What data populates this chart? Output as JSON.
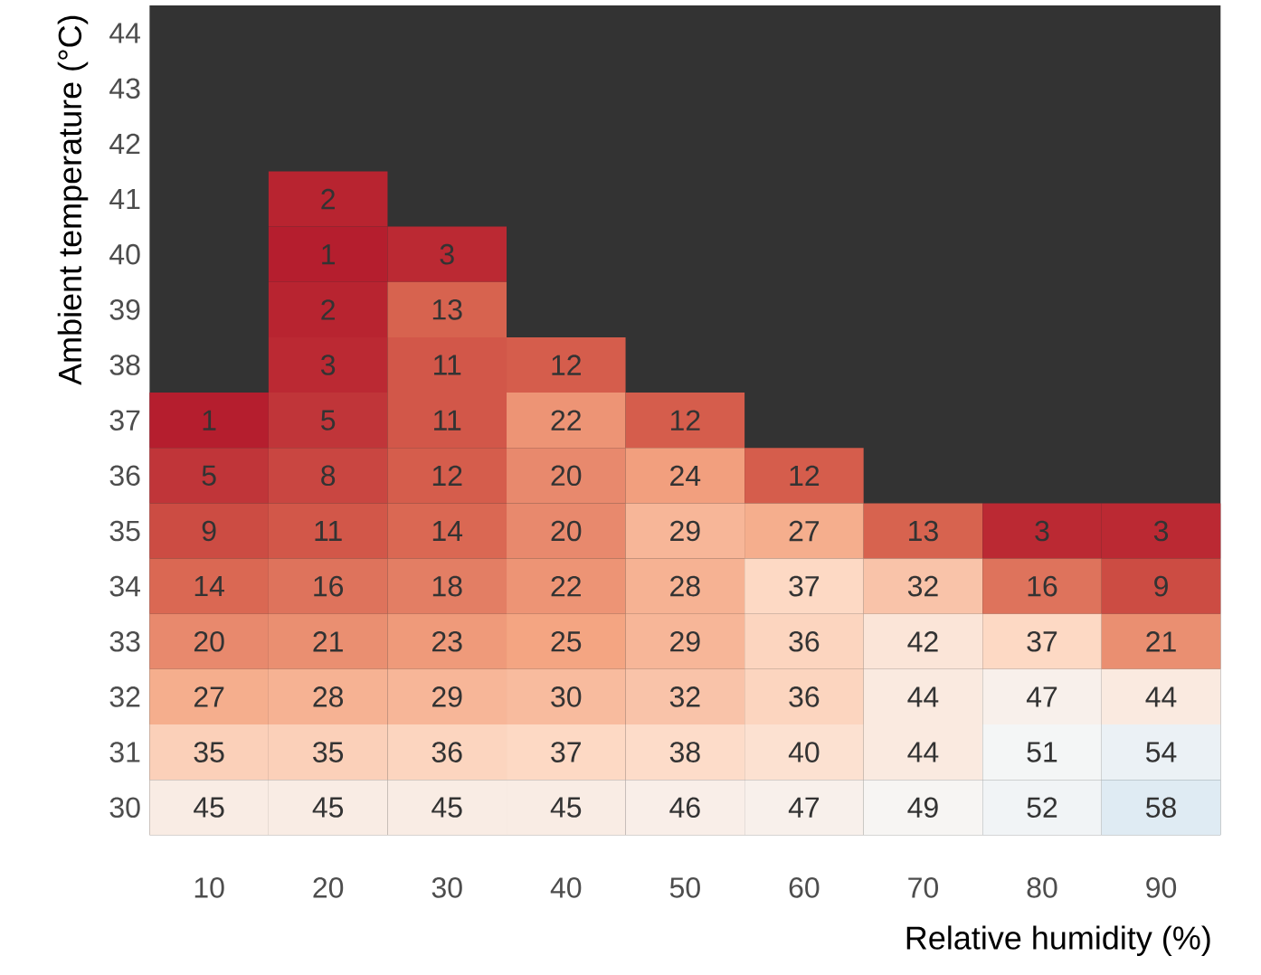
{
  "chart_data": {
    "type": "heatmap",
    "xlabel": "Relative humidity (%)",
    "ylabel": "Ambient temperature (°C)",
    "categories": [
      "10",
      "20",
      "30",
      "40",
      "50",
      "60",
      "70",
      "80",
      "90"
    ],
    "y_categories": [
      "44",
      "43",
      "42",
      "41",
      "40",
      "39",
      "38",
      "37",
      "36",
      "35",
      "34",
      "33",
      "32",
      "31",
      "30"
    ],
    "cells": [
      [
        null,
        null,
        null,
        null,
        null,
        null,
        null,
        null,
        null
      ],
      [
        null,
        null,
        null,
        null,
        null,
        null,
        null,
        null,
        null
      ],
      [
        null,
        null,
        null,
        null,
        null,
        null,
        null,
        null,
        null
      ],
      [
        null,
        2,
        null,
        null,
        null,
        null,
        null,
        null,
        null
      ],
      [
        null,
        1,
        3,
        null,
        null,
        null,
        null,
        null,
        null
      ],
      [
        null,
        2,
        13,
        null,
        null,
        null,
        null,
        null,
        null
      ],
      [
        null,
        3,
        11,
        12,
        null,
        null,
        null,
        null,
        null
      ],
      [
        1,
        5,
        11,
        22,
        12,
        null,
        null,
        null,
        null
      ],
      [
        5,
        8,
        12,
        20,
        24,
        12,
        null,
        null,
        null
      ],
      [
        9,
        11,
        14,
        20,
        29,
        27,
        13,
        3,
        3
      ],
      [
        14,
        16,
        18,
        22,
        28,
        37,
        32,
        16,
        9
      ],
      [
        20,
        21,
        23,
        25,
        29,
        36,
        42,
        37,
        21
      ],
      [
        27,
        28,
        29,
        30,
        32,
        36,
        44,
        47,
        44
      ],
      [
        35,
        35,
        36,
        37,
        38,
        40,
        44,
        51,
        54
      ],
      [
        45,
        45,
        45,
        45,
        46,
        47,
        49,
        52,
        58
      ]
    ],
    "data_labels": true
  }
}
